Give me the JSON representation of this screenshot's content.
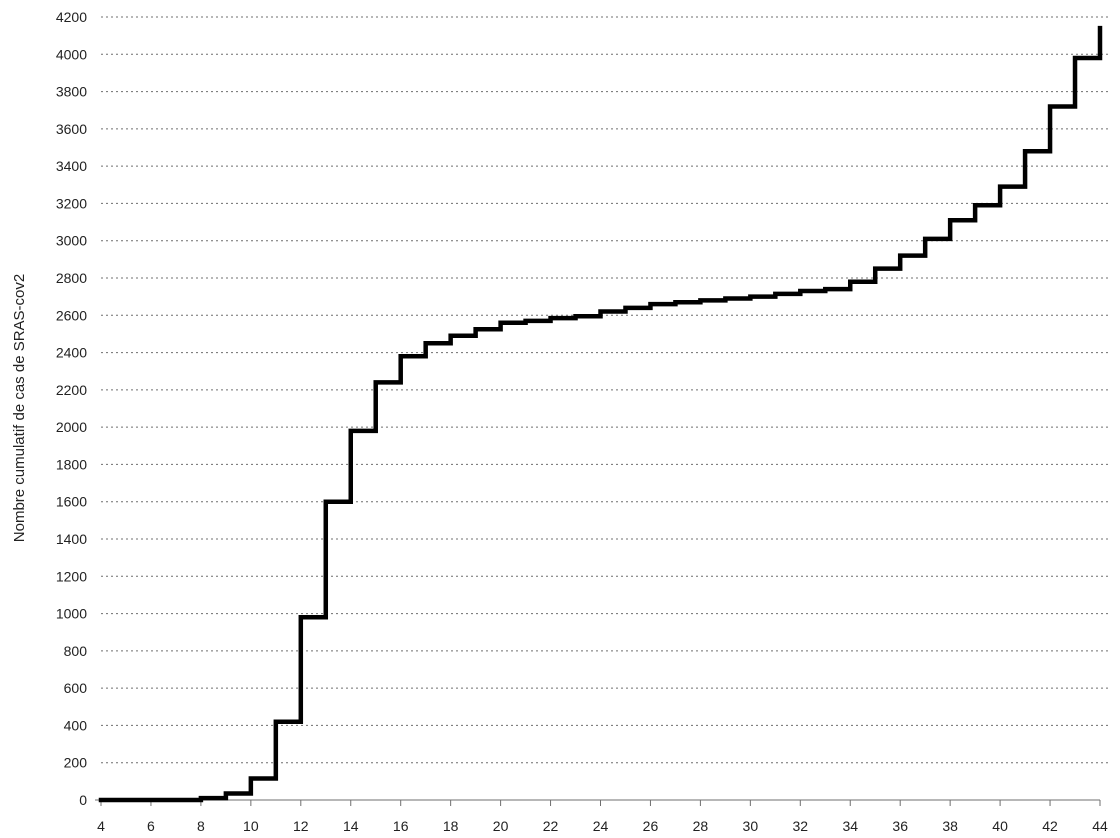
{
  "chart_data": {
    "type": "line",
    "step": "post",
    "title": "",
    "xlabel": "",
    "ylabel": "Nombre cumulatif de cas de SRAS-cov2",
    "xlim": [
      4,
      44
    ],
    "ylim": [
      0,
      4200
    ],
    "xticks": [
      4,
      6,
      8,
      10,
      12,
      14,
      16,
      18,
      20,
      22,
      24,
      26,
      28,
      30,
      32,
      34,
      36,
      38,
      40,
      42,
      44
    ],
    "yticks": [
      0,
      200,
      400,
      600,
      800,
      1000,
      1200,
      1400,
      1600,
      1800,
      2000,
      2200,
      2400,
      2600,
      2800,
      3000,
      3200,
      3400,
      3600,
      3800,
      4000,
      4200
    ],
    "grid": true,
    "series": [
      {
        "line_color": "#000000",
        "x": [
          4,
          5,
          6,
          7,
          8,
          9,
          10,
          11,
          12,
          13,
          14,
          15,
          16,
          17,
          18,
          19,
          20,
          21,
          22,
          23,
          24,
          25,
          26,
          27,
          28,
          29,
          30,
          31,
          32,
          33,
          34,
          35,
          36,
          37,
          38,
          39,
          40,
          41,
          42,
          43,
          44
        ],
        "y": [
          0,
          0,
          0,
          0,
          10,
          35,
          115,
          420,
          980,
          1600,
          1980,
          2240,
          2380,
          2450,
          2490,
          2525,
          2560,
          2570,
          2585,
          2595,
          2620,
          2640,
          2660,
          2670,
          2680,
          2690,
          2700,
          2715,
          2730,
          2740,
          2780,
          2850,
          2920,
          3010,
          3110,
          3190,
          3290,
          3480,
          3720,
          3980,
          4140
        ]
      }
    ]
  }
}
